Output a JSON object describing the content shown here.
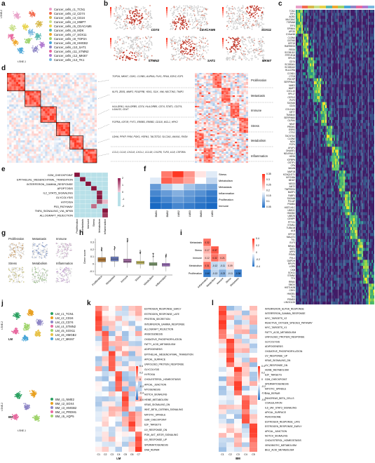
{
  "panels": {
    "a": "a",
    "b": "b",
    "c": "c",
    "d": "d",
    "e": "e",
    "f": "f",
    "g": "g",
    "h": "h",
    "i": "i",
    "j": "j",
    "k": "k",
    "l": "l"
  },
  "panel_a": {
    "y_axis": "t-SNE-2",
    "x_axis": "t-SNE-1",
    "clusters": [
      {
        "label": "Cancer_cells_c1_TCN1",
        "color": "#e8a0c8"
      },
      {
        "label": "Cancer_cells_c2_CD74",
        "color": "#f26b4f"
      },
      {
        "label": "Cancer_cells_c3_CD24",
        "color": "#d7b84a"
      },
      {
        "label": "Cancer_cells_c4_MMP7",
        "color": "#c9e08a"
      },
      {
        "label": "Cancer_cells_c5_CEACAM6",
        "color": "#e7d24a"
      },
      {
        "label": "Cancer_cells_c6_MDK",
        "color": "#58b8b0"
      },
      {
        "label": "Cancer_cells_c7_SOX11",
        "color": "#f0a830"
      },
      {
        "label": "Cancer_cells_c8_TOP2A",
        "color": "#9ed36a"
      },
      {
        "label": "Cancer_cells_c9_HMGB2",
        "color": "#4aa6d8"
      },
      {
        "label": "Cancer_cells_c10_SAT1",
        "color": "#8e86c6"
      },
      {
        "label": "Cancer_cells_c11_STMN2",
        "color": "#e86aa0"
      },
      {
        "label": "Cancer_cells_c12_MKI67",
        "color": "#b07ad0"
      },
      {
        "label": "Cancer_cells_c13_TK1",
        "color": "#7ab8e0"
      }
    ]
  },
  "panel_b": {
    "genes": [
      "CD74",
      "CEACAM6",
      "SOX11",
      "STMN2",
      "SAT1",
      "MKI67"
    ]
  },
  "panel_c": {
    "genes": [
      "TCN1",
      "TFF1",
      "AGR2",
      "MUC5AC",
      "TSPAN8",
      "TFF3",
      "SPINK4",
      "APOD",
      "C15orf48",
      "CLDN4",
      "GSTM3",
      "KRT19",
      "RARRES3",
      "REG4",
      "SCGB1D2",
      "PPP1R1B",
      "RPL23",
      "CD74",
      "SCGB3A1",
      "SCGB2A2",
      "HLA-DRA",
      "CCND1",
      "CTSD",
      "FDCSP",
      "SERPINA3",
      "NME2",
      "MMP7",
      "CXCL10",
      "RPL17",
      "CEF1G",
      "PLP2",
      "S100A6",
      "CD24",
      "COL11A1",
      "KRT7",
      "TMSB4X",
      "SERPINB3",
      "OLFM4",
      "NEAT",
      "PRDM1",
      "ESRG",
      "CTSC",
      "TACSTD2",
      "CLDN2",
      "MDK",
      "PCP4",
      "AFUP1",
      "DNASE1",
      "NDUFA4L2",
      "HES6",
      "IGFBP6",
      "GSTP1",
      "CPA",
      "NKAIN",
      "MAP1B",
      "KCNQ1OT1",
      "MYO18A",
      "MKI67",
      "MEG3",
      "AMT2",
      "TMPRSS4",
      "BASP1",
      "FABP1",
      "S100A8",
      "PCLAF",
      "PSMB3",
      "HIST1H1C",
      "UBE2C",
      "HMGB2",
      "UBE2S",
      "CENPF",
      "PTTG1",
      "STMN1",
      "TUBA1B",
      "ALB",
      "KRT13",
      "MALAT1",
      "TVL",
      "ELF3",
      "NR4A1",
      "SAT1",
      "APP3",
      "PSMA",
      "FHL1",
      "GAPDH",
      "RPLP0",
      "LGR5",
      "CKB",
      "SOX11",
      "STMN2",
      "TTK",
      "RRM2",
      "SMOX",
      "HIST1H2B",
      "CDK1",
      "HMGB1",
      "TK1",
      "PSMD3",
      "LINC01133"
    ],
    "cluster_colors": [
      "#e8a0c8",
      "#f26b4f",
      "#d7b84a",
      "#c9e08a",
      "#e7d24a",
      "#58b8b0",
      "#f0a830",
      "#9ed36a",
      "#4aa6d8",
      "#8e86c6",
      "#e86aa0",
      "#b07ad0",
      "#7ab8e0"
    ]
  },
  "panel_d": {
    "programs": [
      {
        "name": "Proliferation",
        "genes": "TOP2A, MKI67, CDK1, CCNB1, AURKA, PLK1, RFA4, EZH2, E2F1"
      },
      {
        "name": "Metastasis",
        "genes": "KLF5, ZEB1, MMP2, PDGFRB, YBX1, SOX, VIM, NECTIN3, TIMP1"
      },
      {
        "name": "Immune",
        "genes": "HLA-DPA1, HLA-DRB5, CD74, HLA-DRB5, CD74, STAT1, CD274, LGALS3, CD47"
      },
      {
        "name": "Stress",
        "genes": "FGFRA, IGF1R, PVT1, ERBB3, ERBB2, CD110, MCL1, HPK2"
      },
      {
        "name": "Metabolism",
        "genes": "LDHA, PFKP, PKM, PGK1, HSPA1, TACSTD2, SLC2A1, ANXA1, FASN"
      },
      {
        "name": "Inflammation",
        "genes": "CCL3, CCL8, CXCL8, CXCL1, CCL18, CXCR5, TLR3, IL18, CSF3RA"
      }
    ]
  },
  "panel_e": {
    "rows": [
      "G2M_CHECKPOINT",
      "EPITHELIAL_MESENCHYMAL_TRANSITION",
      "INTERFERON_GAMMA_RESPONSE",
      "APOPTOSIS",
      "IL2_STAT5_SIGNALING",
      "GLYCOLYSIS",
      "HYPOXIA",
      "P53_PATHWAY",
      "TNFA_SIGNALING_VIA_NFKB",
      "ALLOGRAFT_REJECTION"
    ],
    "cols": [
      "Proliferation",
      "Metastasis",
      "Immune",
      "Stress",
      "Metabolism",
      "Inflammation"
    ],
    "scale_ticks": [
      "2",
      "1",
      "0",
      "-1",
      "-2"
    ],
    "values": [
      [
        2.2,
        0,
        0,
        0,
        0,
        0
      ],
      [
        0,
        2.2,
        0,
        0,
        0,
        0
      ],
      [
        0,
        0,
        2.2,
        0,
        0,
        0
      ],
      [
        0,
        0,
        0,
        2.2,
        0,
        0
      ],
      [
        0,
        0,
        0,
        0,
        2.0,
        0
      ],
      [
        0,
        0,
        0,
        0,
        2.2,
        0
      ],
      [
        0,
        0,
        0,
        0,
        1.6,
        0.4
      ],
      [
        0,
        0,
        0,
        1.2,
        0,
        0
      ],
      [
        0,
        0,
        0,
        0,
        0,
        2.2
      ],
      [
        0,
        0,
        0,
        0,
        0,
        1.8
      ]
    ]
  },
  "panel_f": {
    "rows": [
      "Stress",
      "Metabolism",
      "Metastasis",
      "Inflammation",
      "Proliferation",
      "Immune"
    ],
    "cols": [
      "BM01",
      "BM02",
      "LM02",
      "LM03",
      "BM03",
      "LM01"
    ],
    "scale_ticks": [
      "0.35",
      "0.3",
      "0.25",
      "0.2",
      "0.15",
      "0.1",
      "0.05"
    ],
    "values": [
      [
        0.2,
        0.3,
        0.35,
        0.28,
        0.22,
        0.18
      ],
      [
        0.18,
        0.32,
        0.3,
        0.27,
        0.2,
        0.16
      ],
      [
        0.1,
        0.15,
        0.18,
        0.14,
        0.12,
        0.11
      ],
      [
        0.08,
        0.1,
        0.12,
        0.1,
        0.09,
        0.07
      ],
      [
        0.06,
        0.08,
        0.1,
        0.09,
        0.07,
        0.06
      ],
      [
        0.05,
        0.06,
        0.08,
        0.07,
        0.06,
        0.05
      ]
    ]
  },
  "panel_g": {
    "labels": [
      "Proliferation",
      "Metastasis",
      "Immune",
      "Stress",
      "Metabolism",
      "Inflammation"
    ]
  },
  "panel_h": {
    "ylabel": "Gene score",
    "categories": [
      "Proliferation",
      "Metastasis",
      "Immune",
      "Stress",
      "Metabolism",
      "Inflammation"
    ],
    "y_ticks": [
      "0.3",
      "0.2",
      "0.1",
      "0",
      "-0.1"
    ],
    "ylim": [
      -0.15,
      0.35
    ],
    "boxes": [
      {
        "q1": 0.03,
        "median": 0.06,
        "q3": 0.09,
        "min": -0.05,
        "max": 0.18,
        "color": "#b07a3a"
      },
      {
        "q1": 0.04,
        "median": 0.07,
        "q3": 0.1,
        "min": -0.04,
        "max": 0.19,
        "color": "#6a7ab8"
      },
      {
        "q1": 0.02,
        "median": 0.04,
        "q3": 0.07,
        "min": -0.05,
        "max": 0.3,
        "color": "#a06aa0"
      },
      {
        "q1": 0.0,
        "median": 0.02,
        "q3": 0.04,
        "min": -0.06,
        "max": 0.14,
        "color": "#c8c060"
      },
      {
        "q1": -0.02,
        "median": 0.0,
        "q3": 0.02,
        "min": -0.08,
        "max": 0.1,
        "color": "#80a070"
      },
      {
        "q1": -0.03,
        "median": -0.01,
        "q3": 0.01,
        "min": -0.1,
        "max": 0.09,
        "color": "#a070c0"
      }
    ]
  },
  "panel_i": {
    "labels": [
      "Metastasis",
      "Stress",
      "Immune",
      "Metabolism",
      "Proliferation"
    ],
    "col_labels": [
      "Inflammation",
      "Metabolism",
      "Immune",
      "Stress",
      "Metastasis"
    ],
    "scale_ticks": [
      "0.4",
      "0.2",
      "0",
      "-0.2",
      "-0.4"
    ],
    "cells": [
      [
        "0.32"
      ],
      [
        "0.17",
        "0.37"
      ],
      [
        "0.12",
        "0.32",
        "0.21"
      ],
      [
        "0.31",
        "-0.12",
        "-0.11",
        "0.09"
      ],
      [
        "-0.40",
        "-0.13",
        "-0.23",
        "-0.11",
        "-0.38"
      ]
    ]
  },
  "panel_j": {
    "lm_title": "LM",
    "bm_title": "BM",
    "y_axis": "t-SNE-2",
    "x_axis": "t-SNE-1",
    "lm_clusters": [
      {
        "label": "LM_c1_TCN1",
        "color": "#2aa060"
      },
      {
        "label": "LM_c2_CD24",
        "color": "#e8a020"
      },
      {
        "label": "LM_c3_CD74",
        "color": "#8e86c6"
      },
      {
        "label": "LM_c4_STMN2",
        "color": "#e86aa0"
      },
      {
        "label": "LM_c5_SOX11",
        "color": "#9ed36a"
      },
      {
        "label": "LM_c6_HMGB2",
        "color": "#e7c24a"
      },
      {
        "label": "LM_c7_MKI67",
        "color": "#4aa6d8"
      }
    ],
    "bm_clusters": [
      {
        "label": "BM_c1_NME2",
        "color": "#2aa060"
      },
      {
        "label": "BM_c2_SOX4",
        "color": "#e8a020"
      },
      {
        "label": "BM_c3_HMGB2",
        "color": "#8e86c6"
      },
      {
        "label": "BM_c4_PRDM1",
        "color": "#e86aa0"
      },
      {
        "label": "BM_c5_AQP5",
        "color": "#9ed36a"
      }
    ]
  },
  "panel_k": {
    "title": "LM",
    "cols": [
      "C1",
      "C2",
      "C3",
      "C4",
      "C5",
      "C6",
      "C7"
    ],
    "rows": [
      "ESTROGEN_RESPONSE_EARLY",
      "ESTROGEN_RESPONSE_LATE",
      "PROTEIN_SECRETION",
      "INTERFERON_GAMMA_RESPONSE",
      "ALLOGRAFT_REJECTION",
      "ANGIOGENESIS",
      "OXIDATIVE_PHOSPHORYLATION",
      "FATTY_ACID_METABOLISM",
      "ADIPOGENESIS",
      "EPITHELIAL_MESENCHYMAL_TRANSITION",
      "APICAL_SURFACE",
      "UNFOLDED_PROTEIN_RESPONSE",
      "GLYCOLYSIS",
      "HYPOXIA",
      "CHOLESTEROL_HOMEOSTASIS",
      "APICAL_JUNCTION",
      "MYOGENESIS",
      "NOTCH_SIGNALING",
      "HEME_METABOLISM",
      "KRAS_SIGNALING_DN",
      "WNT_BETA_CATENIN_SIGNALING",
      "MITOTIC_SPINDLE",
      "G2M_CHECKPOINT",
      "E2F_TARGETS",
      "UV_RESPONSE_DN",
      "PI3K_AKT_MTOR_SIGNALING",
      "UV_RESPONSE_UP",
      "SPERMATOGENESIS",
      "DNA_REPAIR"
    ],
    "scale_ticks": [
      "0.4",
      "0.2",
      "0",
      "-0.2",
      "-0.4",
      "-0.6"
    ]
  },
  "panel_l": {
    "title": "BM",
    "cols": [
      "C1",
      "C2",
      "C3",
      "C4",
      "C5"
    ],
    "rows": [
      "INTERFERON_ALPHA_RESPONSE",
      "INTERFERON_GAMMA_RESPONSE",
      "MYC_TARGETS_V2",
      "REACTIVE_OXYGEN_SPECIES_PATHWAY",
      "MYC_TARGETS_V1",
      "FATTY_ACID_METABOLISM",
      "UNFOLDED_PROTEIN_RESPONSE",
      "GLYCOLYSIS",
      "ADIPOGENESIS",
      "OXIDATIVE_PHOSPHORYLATION",
      "UV_RESPONSE_UP",
      "KRAS_SIGNALING_DN",
      "UV_RESPONSE_DN",
      "HEME_METABOLISM",
      "E2F_TARGETS",
      "G2M_CHECKPOINT",
      "SPERMATOGENESIS",
      "MITOTIC_SPINDLE",
      "DNA_REPAIR",
      "PANCREAS_BETA_CELLS",
      "COAGULATION",
      "IL6_JAK_STAT3_SIGNALING",
      "APICAL_SURFACE",
      "PEROXISOME",
      "ESTROGEN_RESPONSE_LATE",
      "ESTROGEN_RESPONSE_EARLY",
      "APICAL_JUNCTION",
      "NOTCH_SIGNALING",
      "CHOLESTEROL_HOMEOSTASIS",
      "XENOBIOTIC_METABOLISM",
      "BILE_ACID_METABOLISM"
    ],
    "scale_ticks": [
      "0.4",
      "0.2",
      "0",
      "-0.2",
      "-0.4",
      "-0.6"
    ]
  }
}
